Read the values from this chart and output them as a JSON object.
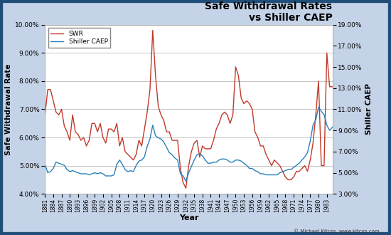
{
  "title": "Safe Withdrawal Rates\nvs Shiller CAEP",
  "xlabel": "Year",
  "ylabel_left": "Safe Withdrawal Rate",
  "ylabel_right": "Shiller CAEP",
  "background_color": "#c5d3e8",
  "border_color": "#1f4e79",
  "plot_bg_color": "#ffffff",
  "swr_color": "#c0392b",
  "caep_color": "#2980b9",
  "grid_color": "#bbbbbb",
  "ylim_left": [
    0.04,
    0.1
  ],
  "ylim_right": [
    0.03,
    0.19
  ],
  "years": [
    1881,
    1882,
    1883,
    1884,
    1885,
    1886,
    1887,
    1888,
    1889,
    1890,
    1891,
    1892,
    1893,
    1894,
    1895,
    1896,
    1897,
    1898,
    1899,
    1900,
    1901,
    1902,
    1903,
    1904,
    1905,
    1906,
    1907,
    1908,
    1909,
    1910,
    1911,
    1912,
    1913,
    1914,
    1915,
    1916,
    1917,
    1918,
    1919,
    1920,
    1921,
    1922,
    1923,
    1924,
    1925,
    1926,
    1927,
    1928,
    1929,
    1930,
    1931,
    1932,
    1933,
    1934,
    1935,
    1936,
    1937,
    1938,
    1939,
    1940,
    1941,
    1942,
    1943,
    1944,
    1945,
    1946,
    1947,
    1948,
    1949,
    1950,
    1951,
    1952,
    1953,
    1954,
    1955,
    1956,
    1957,
    1958,
    1959,
    1960,
    1961,
    1962,
    1963,
    1964,
    1965,
    1966,
    1967,
    1968,
    1969,
    1970,
    1971,
    1972,
    1973,
    1974,
    1975,
    1976,
    1977,
    1978,
    1979,
    1980,
    1981,
    1982,
    1983,
    1984,
    1985
  ],
  "swr": [
    0.068,
    0.077,
    0.077,
    0.073,
    0.069,
    0.068,
    0.07,
    0.064,
    0.062,
    0.059,
    0.068,
    0.062,
    0.061,
    0.059,
    0.06,
    0.057,
    0.059,
    0.065,
    0.065,
    0.062,
    0.065,
    0.06,
    0.058,
    0.063,
    0.063,
    0.062,
    0.065,
    0.057,
    0.06,
    0.055,
    0.054,
    0.053,
    0.052,
    0.054,
    0.059,
    0.057,
    0.063,
    0.069,
    0.077,
    0.098,
    0.082,
    0.071,
    0.068,
    0.066,
    0.062,
    0.062,
    0.059,
    0.059,
    0.059,
    0.049,
    0.044,
    0.042,
    0.05,
    0.055,
    0.058,
    0.059,
    0.053,
    0.057,
    0.056,
    0.056,
    0.056,
    0.059,
    0.063,
    0.065,
    0.068,
    0.069,
    0.068,
    0.065,
    0.068,
    0.085,
    0.082,
    0.074,
    0.072,
    0.073,
    0.072,
    0.07,
    0.062,
    0.06,
    0.057,
    0.057,
    0.054,
    0.052,
    0.05,
    0.052,
    0.051,
    0.05,
    0.048,
    0.046,
    0.045,
    0.045,
    0.046,
    0.048,
    0.048,
    0.049,
    0.05,
    0.048,
    0.052,
    0.058,
    0.068,
    0.08,
    0.05,
    0.05,
    0.09,
    0.078,
    0.078
  ],
  "caep": [
    0.058,
    0.05,
    0.051,
    0.054,
    0.06,
    0.059,
    0.058,
    0.057,
    0.053,
    0.051,
    0.052,
    0.051,
    0.05,
    0.049,
    0.049,
    0.049,
    0.048,
    0.049,
    0.05,
    0.049,
    0.05,
    0.049,
    0.047,
    0.047,
    0.047,
    0.048,
    0.058,
    0.062,
    0.058,
    0.053,
    0.051,
    0.052,
    0.051,
    0.057,
    0.061,
    0.062,
    0.065,
    0.075,
    0.082,
    0.095,
    0.085,
    0.083,
    0.082,
    0.079,
    0.074,
    0.069,
    0.067,
    0.064,
    0.062,
    0.049,
    0.047,
    0.042,
    0.05,
    0.056,
    0.062,
    0.067,
    0.068,
    0.066,
    0.062,
    0.059,
    0.059,
    0.06,
    0.06,
    0.062,
    0.063,
    0.063,
    0.062,
    0.06,
    0.06,
    0.062,
    0.062,
    0.061,
    0.059,
    0.057,
    0.054,
    0.054,
    0.052,
    0.051,
    0.049,
    0.049,
    0.048,
    0.048,
    0.048,
    0.048,
    0.048,
    0.05,
    0.051,
    0.052,
    0.053,
    0.053,
    0.055,
    0.057,
    0.059,
    0.062,
    0.065,
    0.069,
    0.08,
    0.095,
    0.1,
    0.112,
    0.108,
    0.105,
    0.095,
    0.09,
    0.093
  ],
  "xticks": [
    1881,
    1884,
    1887,
    1890,
    1893,
    1896,
    1899,
    1902,
    1905,
    1908,
    1911,
    1914,
    1917,
    1920,
    1923,
    1926,
    1929,
    1932,
    1935,
    1938,
    1941,
    1944,
    1947,
    1950,
    1953,
    1956,
    1959,
    1962,
    1965,
    1968,
    1971,
    1974,
    1977,
    1980,
    1983
  ],
  "yticks_left": [
    0.04,
    0.05,
    0.06,
    0.07,
    0.08,
    0.09,
    0.1
  ],
  "yticks_right": [
    0.03,
    0.05,
    0.07,
    0.09,
    0.11,
    0.13,
    0.15,
    0.17,
    0.19
  ],
  "copyright_text": "© Michael Kitces, www.kitces.com"
}
